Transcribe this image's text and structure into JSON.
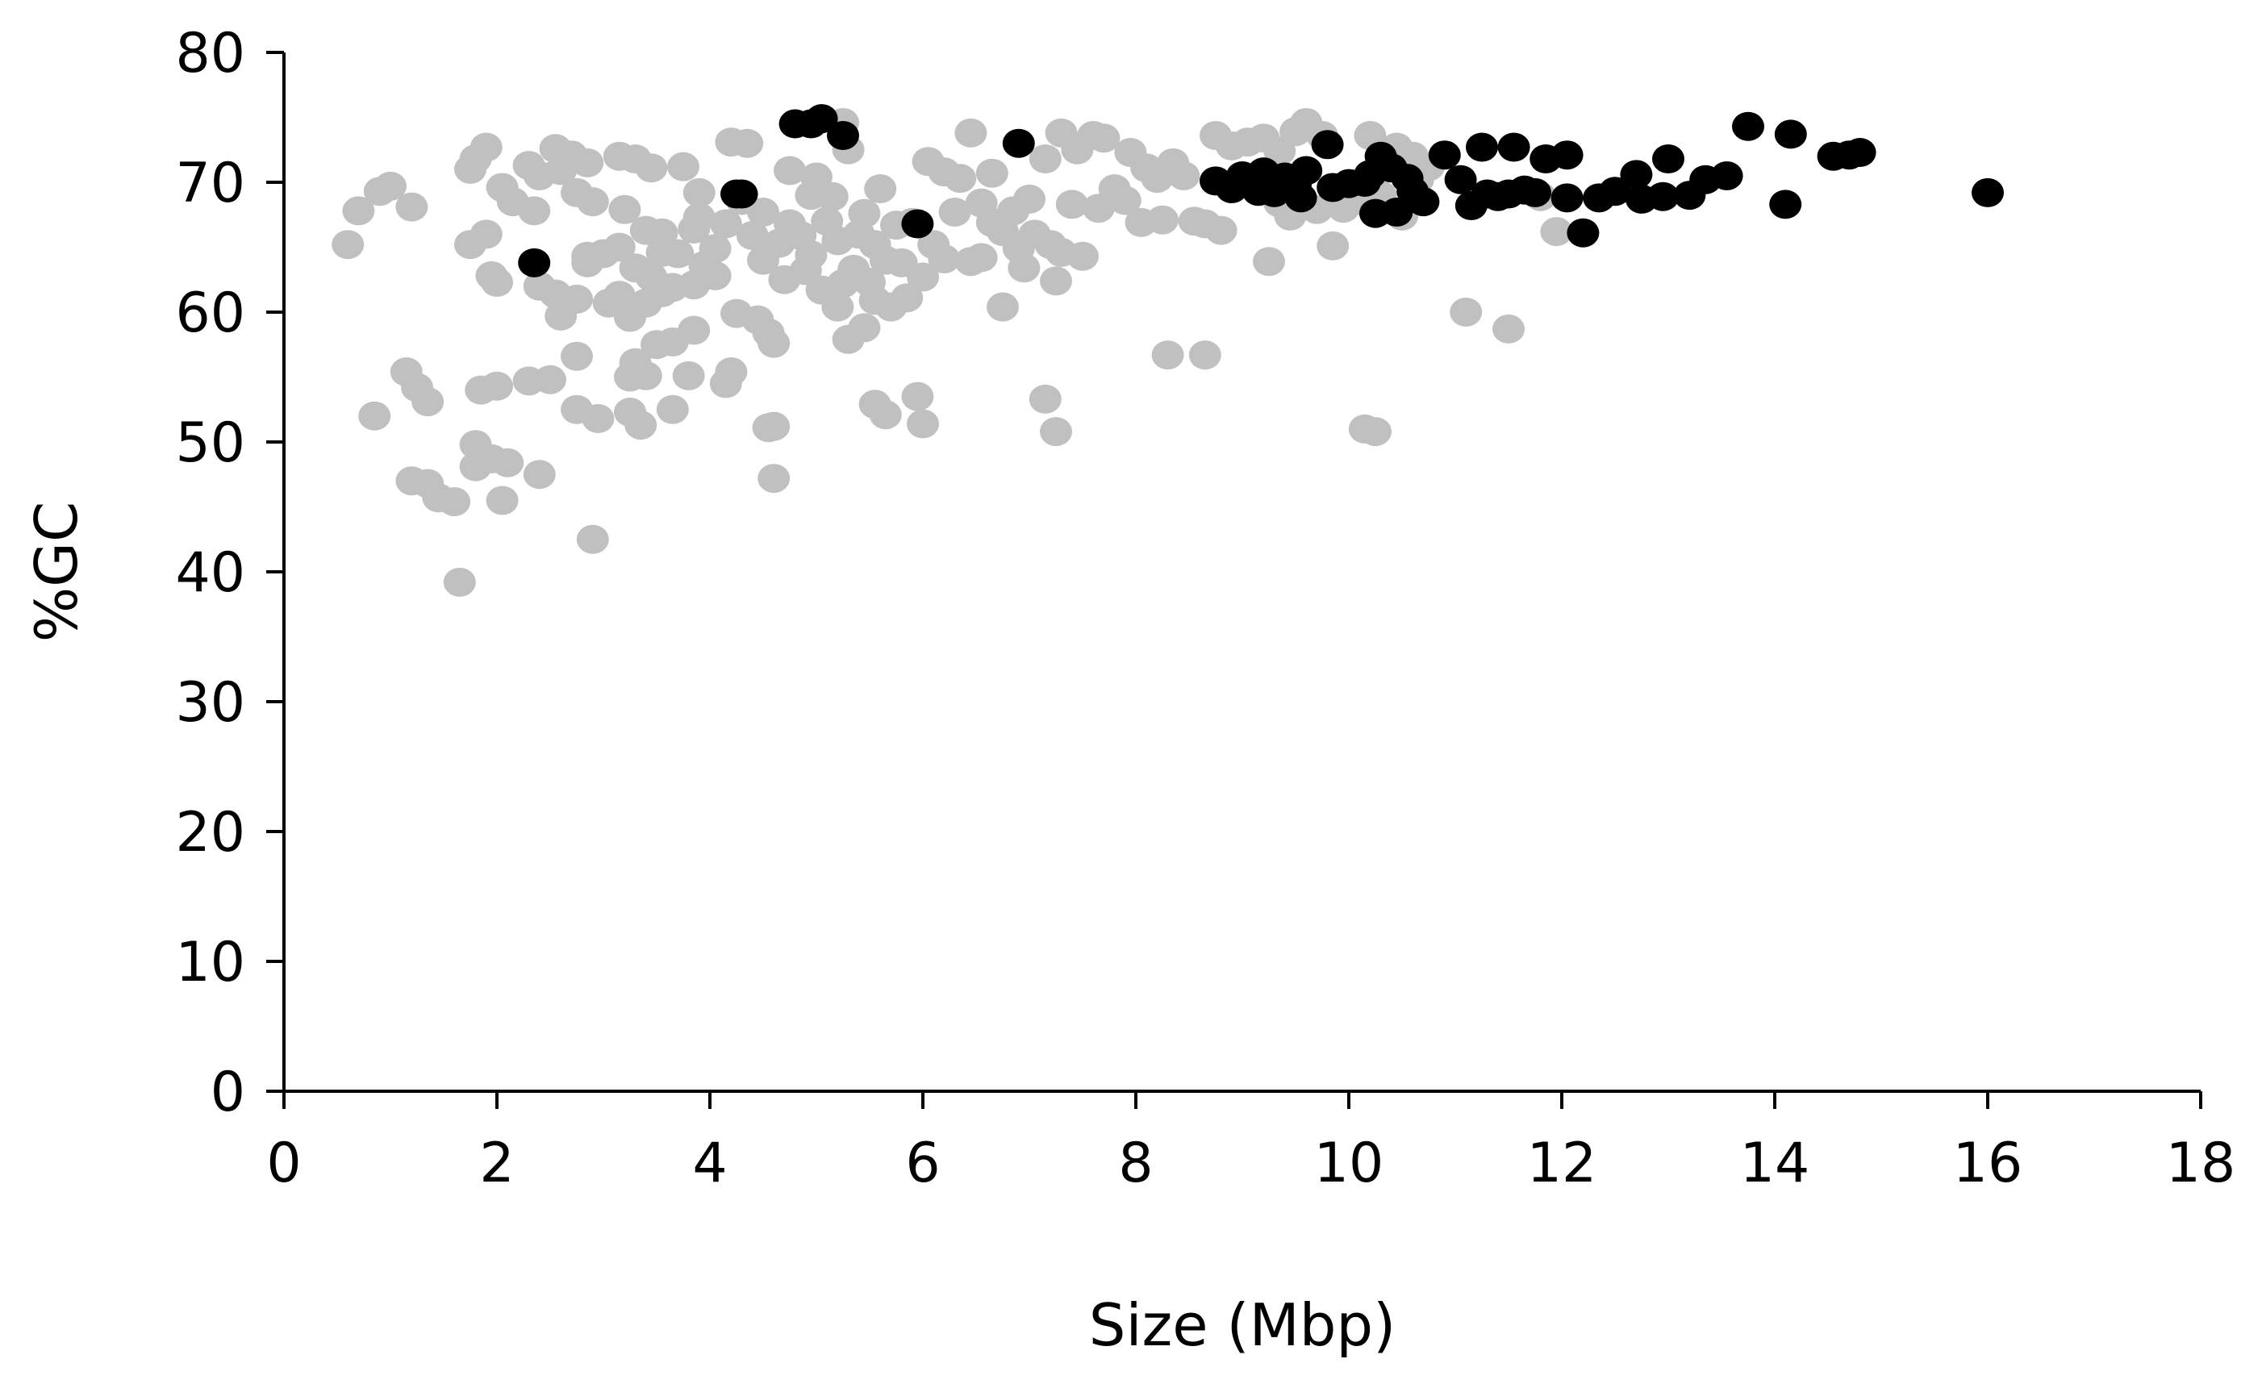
{
  "chart_data": {
    "type": "scatter",
    "title": "",
    "xlabel": "Size (Mbp)",
    "ylabel": "%GC",
    "xlim": [
      0,
      18
    ],
    "ylim": [
      0,
      80
    ],
    "x_ticks": [
      "0",
      "2",
      "4",
      "6",
      "8",
      "10",
      "12",
      "14",
      "16",
      "18"
    ],
    "y_ticks": [
      "0",
      "10",
      "20",
      "30",
      "40",
      "50",
      "60",
      "70",
      "80"
    ],
    "grid": false,
    "legend": "none",
    "series": [
      {
        "color": "#c0c0c0",
        "points": [
          [
            0.6,
            65.2
          ],
          [
            0.7,
            67.8
          ],
          [
            0.9,
            69.3
          ],
          [
            1.0,
            69.7
          ],
          [
            1.2,
            68.1
          ],
          [
            0.85,
            52.0
          ],
          [
            1.15,
            55.4
          ],
          [
            1.25,
            54.2
          ],
          [
            1.35,
            53.1
          ],
          [
            1.2,
            47.0
          ],
          [
            1.35,
            46.8
          ],
          [
            1.45,
            45.7
          ],
          [
            1.6,
            45.4
          ],
          [
            1.65,
            39.2
          ],
          [
            1.75,
            71.0
          ],
          [
            1.8,
            71.8
          ],
          [
            1.9,
            72.7
          ],
          [
            1.75,
            65.2
          ],
          [
            1.9,
            66.0
          ],
          [
            1.95,
            62.8
          ],
          [
            2.0,
            62.3
          ],
          [
            2.05,
            69.6
          ],
          [
            2.15,
            68.5
          ],
          [
            1.85,
            54.0
          ],
          [
            2.0,
            54.3
          ],
          [
            1.8,
            49.8
          ],
          [
            1.95,
            48.7
          ],
          [
            1.8,
            48.1
          ],
          [
            2.1,
            48.4
          ],
          [
            2.05,
            45.5
          ],
          [
            2.3,
            54.7
          ],
          [
            2.5,
            54.8
          ],
          [
            2.4,
            47.5
          ],
          [
            2.35,
            67.8
          ],
          [
            2.3,
            71.3
          ],
          [
            2.4,
            70.5
          ],
          [
            2.55,
            72.6
          ],
          [
            2.7,
            72.1
          ],
          [
            2.85,
            71.5
          ],
          [
            2.6,
            70.9
          ],
          [
            2.75,
            69.2
          ],
          [
            2.9,
            68.5
          ],
          [
            2.4,
            62.0
          ],
          [
            2.55,
            61.4
          ],
          [
            2.6,
            59.7
          ],
          [
            2.75,
            61.0
          ],
          [
            2.85,
            63.8
          ],
          [
            3.0,
            64.5
          ],
          [
            2.75,
            56.6
          ],
          [
            2.75,
            52.5
          ],
          [
            2.95,
            51.8
          ],
          [
            2.9,
            42.5
          ],
          [
            3.15,
            72.0
          ],
          [
            3.3,
            71.8
          ],
          [
            3.45,
            71.1
          ],
          [
            3.2,
            67.9
          ],
          [
            3.4,
            66.3
          ],
          [
            3.55,
            66.1
          ],
          [
            3.15,
            65.0
          ],
          [
            3.3,
            63.4
          ],
          [
            3.45,
            62.7
          ],
          [
            3.55,
            61.5
          ],
          [
            3.25,
            59.6
          ],
          [
            3.4,
            60.7
          ],
          [
            3.25,
            55.0
          ],
          [
            3.4,
            55.1
          ],
          [
            3.3,
            56.1
          ],
          [
            3.5,
            57.5
          ],
          [
            3.65,
            57.7
          ],
          [
            3.25,
            52.3
          ],
          [
            3.35,
            51.3
          ],
          [
            3.65,
            52.5
          ],
          [
            3.8,
            55.1
          ],
          [
            3.85,
            58.6
          ],
          [
            3.75,
            71.2
          ],
          [
            3.9,
            69.2
          ],
          [
            3.7,
            64.5
          ],
          [
            3.95,
            63.6
          ],
          [
            3.85,
            62.1
          ],
          [
            4.05,
            62.8
          ],
          [
            4.15,
            66.8
          ],
          [
            4.2,
            73.1
          ],
          [
            4.35,
            73.0
          ],
          [
            4.2,
            55.4
          ],
          [
            4.15,
            54.5
          ],
          [
            4.25,
            59.9
          ],
          [
            4.45,
            59.4
          ],
          [
            4.55,
            58.4
          ],
          [
            4.6,
            57.6
          ],
          [
            4.55,
            51.1
          ],
          [
            4.6,
            51.2
          ],
          [
            4.6,
            47.2
          ],
          [
            4.5,
            64.0
          ],
          [
            4.65,
            65.3
          ],
          [
            4.75,
            66.8
          ],
          [
            4.9,
            63.2
          ],
          [
            4.95,
            69.0
          ],
          [
            5.0,
            70.4
          ],
          [
            5.15,
            68.9
          ],
          [
            5.25,
            74.6
          ],
          [
            5.3,
            72.5
          ],
          [
            5.4,
            66.0
          ],
          [
            5.55,
            65.2
          ],
          [
            5.65,
            64.0
          ],
          [
            5.05,
            61.7
          ],
          [
            5.2,
            60.4
          ],
          [
            5.3,
            57.9
          ],
          [
            5.45,
            58.8
          ],
          [
            5.55,
            60.9
          ],
          [
            5.7,
            60.4
          ],
          [
            5.85,
            61.1
          ],
          [
            5.55,
            52.9
          ],
          [
            5.65,
            52.1
          ],
          [
            5.95,
            53.5
          ],
          [
            6.0,
            51.4
          ],
          [
            5.9,
            66.9
          ],
          [
            6.05,
            71.6
          ],
          [
            6.2,
            70.8
          ],
          [
            6.35,
            70.3
          ],
          [
            6.45,
            73.8
          ],
          [
            6.55,
            68.4
          ],
          [
            6.65,
            66.9
          ],
          [
            6.75,
            66.2
          ],
          [
            6.85,
            67.8
          ],
          [
            6.2,
            64.1
          ],
          [
            6.45,
            63.9
          ],
          [
            6.75,
            60.4
          ],
          [
            6.95,
            63.4
          ],
          [
            7.05,
            66.0
          ],
          [
            7.2,
            65.2
          ],
          [
            7.3,
            64.6
          ],
          [
            7.25,
            62.4
          ],
          [
            7.5,
            64.3
          ],
          [
            7.0,
            68.7
          ],
          [
            7.15,
            71.8
          ],
          [
            7.3,
            73.8
          ],
          [
            7.45,
            72.5
          ],
          [
            7.6,
            73.6
          ],
          [
            7.7,
            73.4
          ],
          [
            7.8,
            69.5
          ],
          [
            7.65,
            68.0
          ],
          [
            7.95,
            72.3
          ],
          [
            8.1,
            71.1
          ],
          [
            8.2,
            70.3
          ],
          [
            8.05,
            66.9
          ],
          [
            8.25,
            67.1
          ],
          [
            8.55,
            67.0
          ],
          [
            8.65,
            66.8
          ],
          [
            8.8,
            66.3
          ],
          [
            8.75,
            73.6
          ],
          [
            8.9,
            72.8
          ],
          [
            9.05,
            73.1
          ],
          [
            9.2,
            73.4
          ],
          [
            9.35,
            72.4
          ],
          [
            9.5,
            73.9
          ],
          [
            9.6,
            74.6
          ],
          [
            9.75,
            73.6
          ],
          [
            9.25,
            63.9
          ],
          [
            9.45,
            67.4
          ],
          [
            9.7,
            67.9
          ],
          [
            9.85,
            65.1
          ],
          [
            9.95,
            68.0
          ],
          [
            10.2,
            73.6
          ],
          [
            10.45,
            72.7
          ],
          [
            10.6,
            72.0
          ],
          [
            10.75,
            71.2
          ],
          [
            10.05,
            69.9
          ],
          [
            10.15,
            68.5
          ],
          [
            8.3,
            56.7
          ],
          [
            8.65,
            56.7
          ],
          [
            7.15,
            53.3
          ],
          [
            7.25,
            50.8
          ],
          [
            10.15,
            51.0
          ],
          [
            10.25,
            50.8
          ],
          [
            11.1,
            60.0
          ],
          [
            11.5,
            58.7
          ],
          [
            11.8,
            68.9
          ],
          [
            11.95,
            66.2
          ],
          [
            10.3,
            69.0
          ],
          [
            10.5,
            67.4
          ],
          [
            10.65,
            70.2
          ],
          [
            3.05,
            60.7
          ],
          [
            3.55,
            64.6
          ],
          [
            3.9,
            67.3
          ],
          [
            4.3,
            68.6
          ],
          [
            4.7,
            62.5
          ],
          [
            4.85,
            65.9
          ],
          [
            5.1,
            67.0
          ],
          [
            5.35,
            63.3
          ],
          [
            5.5,
            62.3
          ],
          [
            5.8,
            63.8
          ],
          [
            6.1,
            65.2
          ],
          [
            6.3,
            67.7
          ],
          [
            6.55,
            64.2
          ],
          [
            6.9,
            64.9
          ],
          [
            7.4,
            68.3
          ],
          [
            7.9,
            68.6
          ],
          [
            8.35,
            71.5
          ],
          [
            8.45,
            70.5
          ],
          [
            9.35,
            68.4
          ],
          [
            2.85,
            64.3
          ],
          [
            3.65,
            61.9
          ],
          [
            4.05,
            64.9
          ],
          [
            4.4,
            65.9
          ],
          [
            5.2,
            65.5
          ],
          [
            5.6,
            69.5
          ],
          [
            6.0,
            62.7
          ],
          [
            6.65,
            70.7
          ],
          [
            4.75,
            70.9
          ],
          [
            3.15,
            61.3
          ],
          [
            5.75,
            66.7
          ],
          [
            4.95,
            64.4
          ],
          [
            5.25,
            62.2
          ],
          [
            4.5,
            67.7
          ],
          [
            3.85,
            66.4
          ],
          [
            5.45,
            67.6
          ]
        ]
      },
      {
        "color": "#000000",
        "points": [
          [
            2.35,
            63.8
          ],
          [
            4.25,
            69.1
          ],
          [
            4.3,
            69.1
          ],
          [
            4.8,
            74.5
          ],
          [
            4.95,
            74.5
          ],
          [
            5.05,
            74.9
          ],
          [
            5.25,
            73.6
          ],
          [
            5.95,
            66.8
          ],
          [
            6.9,
            73.0
          ],
          [
            8.75,
            70.1
          ],
          [
            8.9,
            69.5
          ],
          [
            9.0,
            70.5
          ],
          [
            9.1,
            69.9
          ],
          [
            9.2,
            70.8
          ],
          [
            9.3,
            69.2
          ],
          [
            9.4,
            70.4
          ],
          [
            9.5,
            69.8
          ],
          [
            9.6,
            70.9
          ],
          [
            9.8,
            72.9
          ],
          [
            9.85,
            69.6
          ],
          [
            10.0,
            69.9
          ],
          [
            10.2,
            70.6
          ],
          [
            10.3,
            72.0
          ],
          [
            10.4,
            71.1
          ],
          [
            10.25,
            67.6
          ],
          [
            10.45,
            67.7
          ],
          [
            10.6,
            69.3
          ],
          [
            10.7,
            68.5
          ],
          [
            10.9,
            72.1
          ],
          [
            11.05,
            70.2
          ],
          [
            11.15,
            68.2
          ],
          [
            11.3,
            69.1
          ],
          [
            11.5,
            69.1
          ],
          [
            11.25,
            72.7
          ],
          [
            11.55,
            72.7
          ],
          [
            11.85,
            71.8
          ],
          [
            12.05,
            72.1
          ],
          [
            11.65,
            69.4
          ],
          [
            11.75,
            69.2
          ],
          [
            12.05,
            68.8
          ],
          [
            12.2,
            66.1
          ],
          [
            12.35,
            68.8
          ],
          [
            12.5,
            69.3
          ],
          [
            12.7,
            70.6
          ],
          [
            12.75,
            68.7
          ],
          [
            12.95,
            68.9
          ],
          [
            13.0,
            71.8
          ],
          [
            13.2,
            69.0
          ],
          [
            13.35,
            70.2
          ],
          [
            13.55,
            70.5
          ],
          [
            13.75,
            74.3
          ],
          [
            14.1,
            68.3
          ],
          [
            14.15,
            73.7
          ],
          [
            14.55,
            72.0
          ],
          [
            14.7,
            72.1
          ],
          [
            14.8,
            72.3
          ],
          [
            16.0,
            69.2
          ],
          [
            9.15,
            69.3
          ],
          [
            9.55,
            68.8
          ],
          [
            10.15,
            70.0
          ],
          [
            10.55,
            70.3
          ],
          [
            11.4,
            68.9
          ]
        ]
      }
    ]
  }
}
